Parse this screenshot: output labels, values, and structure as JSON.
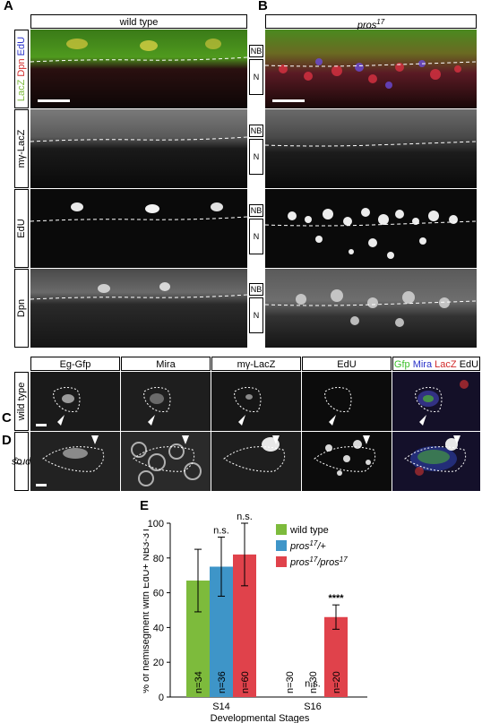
{
  "panels": {
    "A": "A",
    "B": "B",
    "C": "C",
    "D": "D",
    "E": "E"
  },
  "headers": {
    "wild_type": "wild type",
    "pros17_base": "pros",
    "pros17_sup": "17"
  },
  "row_labels": {
    "composite": {
      "lacz": "LacZ",
      "dpn": "Dpn",
      "edu": "EdU"
    },
    "mg_lacz": "mγ-LacZ",
    "edu": "EdU",
    "dpn": "Dpn"
  },
  "region_tags": {
    "nb": "NB",
    "n": "N"
  },
  "cd_headers": {
    "eg_gfp": "Eg-Gfp",
    "mira": "Mira",
    "mg_lacz": "mγ-LacZ",
    "edu": "EdU",
    "merge": {
      "gfp": "Gfp",
      "mira": "Mira",
      "lacz": "LacZ",
      "edu": "EdU"
    }
  },
  "cd_rows": {
    "wild_type": "wild type",
    "pros17_base": "pros",
    "pros17_sup": "17"
  },
  "colors": {
    "green": "#7dbb3c",
    "blue": "#3e95c8",
    "red": "#e0424b"
  },
  "chart_data": {
    "type": "bar",
    "ylabel": "% of hemisegment with EdU+ NB3-3T",
    "xlabel": "Developmental Stages",
    "ylim": [
      0,
      100
    ],
    "yticks": [
      0,
      20,
      40,
      60,
      80,
      100
    ],
    "categories": [
      "S14",
      "S16"
    ],
    "legend": [
      {
        "label": "wild type",
        "color": "#7dbb3c"
      },
      {
        "label_base": "pros",
        "label_sup": "17",
        "label_tail": "/+",
        "color": "#3e95c8"
      },
      {
        "label_base": "pros",
        "label_sup": "17",
        "label_mid": "/pros",
        "label_sup2": "17",
        "color": "#e0424b"
      }
    ],
    "series": [
      {
        "name": "wild type",
        "values": [
          67,
          0
        ],
        "errors": [
          18,
          0
        ],
        "n": [
          "n=34",
          "n=30"
        ]
      },
      {
        "name": "pros17/+",
        "values": [
          75,
          0
        ],
        "errors": [
          17,
          0
        ],
        "n": [
          "n=36",
          "n=30"
        ]
      },
      {
        "name": "pros17/pros17",
        "values": [
          82,
          46
        ],
        "errors": [
          18,
          7
        ],
        "n": [
          "n=60",
          "n=20"
        ]
      }
    ],
    "annotations": {
      "s14_blue": "n.s.",
      "s14_red": "n.s.",
      "s16_blue": "n.s.",
      "s16_red": "****"
    }
  }
}
